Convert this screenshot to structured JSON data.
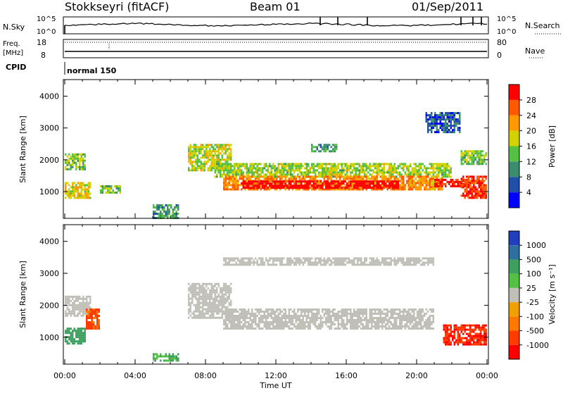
{
  "header": {
    "station": "Stokkseyri (fitACF)",
    "beam": "Beam 01",
    "date": "01/Sep/2011"
  },
  "colors": {
    "power_scale": [
      "#0000ff",
      "#1f4fa8",
      "#3c8c6e",
      "#55c043",
      "#d2d200",
      "#ff9900",
      "#ff5a00",
      "#ff0000"
    ],
    "velocity_scale": [
      "#1f3fbf",
      "#2f6f9f",
      "#3f9f5f",
      "#55c043",
      "#c0c0b8",
      "#f0a000",
      "#ff7800",
      "#ff3c00",
      "#ff0000"
    ],
    "ground_scatter": "#c0c0b8"
  },
  "top_panels": {
    "sky": {
      "left_label": "N.Sky",
      "right_label": "N.Search",
      "left_ticks": [
        "10^5",
        "10^0"
      ],
      "right_ticks": [
        "10^5",
        "10^0"
      ]
    },
    "freq": {
      "left_label_1": "Freq.",
      "left_label_2": "[MHz]",
      "right_label": "Nave",
      "left_ticks": [
        "18",
        "8"
      ],
      "right_ticks": [
        "80",
        "0"
      ]
    },
    "cpid": {
      "label": "CPID",
      "mode": "normal 150"
    }
  },
  "legend_power": {
    "title": "Power [dB]",
    "ticks": [
      "28",
      "24",
      "20",
      "16",
      "12",
      "8",
      "4"
    ]
  },
  "legend_velocity": {
    "title": "Velocity [m s⁻¹]",
    "ticks": [
      "1000",
      "500",
      "100",
      "25",
      "-25",
      "-100",
      "-500",
      "-1000"
    ]
  },
  "chart_data": [
    {
      "type": "heatmap",
      "title": "",
      "ylabel": "Slant Range [km]",
      "xlabel": "",
      "xlim": [
        "00:00",
        "24:00"
      ],
      "ylim": [
        180,
        4500
      ],
      "yticks": [
        1000,
        2000,
        3000,
        4000
      ],
      "colorbar_label": "Power [dB]",
      "colorbar_range": [
        0,
        30
      ],
      "regions": [
        {
          "t0": 0.0,
          "t1": 1.5,
          "r0": 800,
          "r1": 1300,
          "value": 18
        },
        {
          "t0": 0.0,
          "t1": 1.2,
          "r0": 1700,
          "r1": 2200,
          "value": 14
        },
        {
          "t0": 2.0,
          "t1": 3.2,
          "r0": 1000,
          "r1": 1200,
          "value": 14
        },
        {
          "t0": 5.0,
          "t1": 6.5,
          "r0": 200,
          "r1": 600,
          "value": 10
        },
        {
          "t0": 7.0,
          "t1": 9.5,
          "r0": 1700,
          "r1": 2500,
          "value": 16
        },
        {
          "t0": 8.5,
          "t1": 22.0,
          "r0": 1500,
          "r1": 1900,
          "value": 15
        },
        {
          "t0": 9.0,
          "t1": 21.5,
          "r0": 1100,
          "r1": 1500,
          "value": 22
        },
        {
          "t0": 10.0,
          "t1": 19.0,
          "r0": 1150,
          "r1": 1350,
          "value": 30
        },
        {
          "t0": 21.0,
          "t1": 23.0,
          "r0": 1200,
          "r1": 1400,
          "value": 28
        },
        {
          "t0": 22.5,
          "t1": 24.0,
          "r0": 800,
          "r1": 1500,
          "value": 26
        },
        {
          "t0": 22.5,
          "t1": 24.0,
          "r0": 1900,
          "r1": 2300,
          "value": 14
        },
        {
          "t0": 14.0,
          "t1": 15.5,
          "r0": 2300,
          "r1": 2500,
          "value": 10
        },
        {
          "t0": 20.5,
          "t1": 22.5,
          "r0": 2900,
          "r1": 3500,
          "value": 6
        }
      ]
    },
    {
      "type": "heatmap",
      "title": "",
      "ylabel": "Slant Range [km]",
      "xlabel": "Time UT",
      "xlim": [
        "00:00",
        "24:00"
      ],
      "xticks": [
        "00:00",
        "04:00",
        "08:00",
        "12:00",
        "16:00",
        "20:00",
        "00:00"
      ],
      "ylim": [
        180,
        4500
      ],
      "yticks": [
        1000,
        2000,
        3000,
        4000
      ],
      "colorbar_label": "Velocity [m s⁻¹]",
      "colorbar_range": [
        -1000,
        1000
      ],
      "regions": [
        {
          "t0": 0.0,
          "t1": 1.5,
          "r0": 1700,
          "r1": 2300,
          "value": 0,
          "ground_scatter": true
        },
        {
          "t0": 0.0,
          "t1": 1.2,
          "r0": 800,
          "r1": 1300,
          "value": 300
        },
        {
          "t0": 1.2,
          "t1": 2.0,
          "r0": 1300,
          "r1": 1900,
          "value": -500
        },
        {
          "t0": 7.0,
          "t1": 9.5,
          "r0": 1600,
          "r1": 2700,
          "value": 0,
          "ground_scatter": true
        },
        {
          "t0": 9.0,
          "t1": 21.0,
          "r0": 1300,
          "r1": 1900,
          "value": 0,
          "ground_scatter": true
        },
        {
          "t0": 9.0,
          "t1": 21.0,
          "r0": 3300,
          "r1": 3500,
          "value": 0,
          "ground_scatter": true
        },
        {
          "t0": 21.5,
          "t1": 24.0,
          "r0": 800,
          "r1": 1400,
          "value": -1000
        },
        {
          "t0": 5.0,
          "t1": 6.5,
          "r0": 250,
          "r1": 500,
          "value": 100
        }
      ]
    }
  ]
}
